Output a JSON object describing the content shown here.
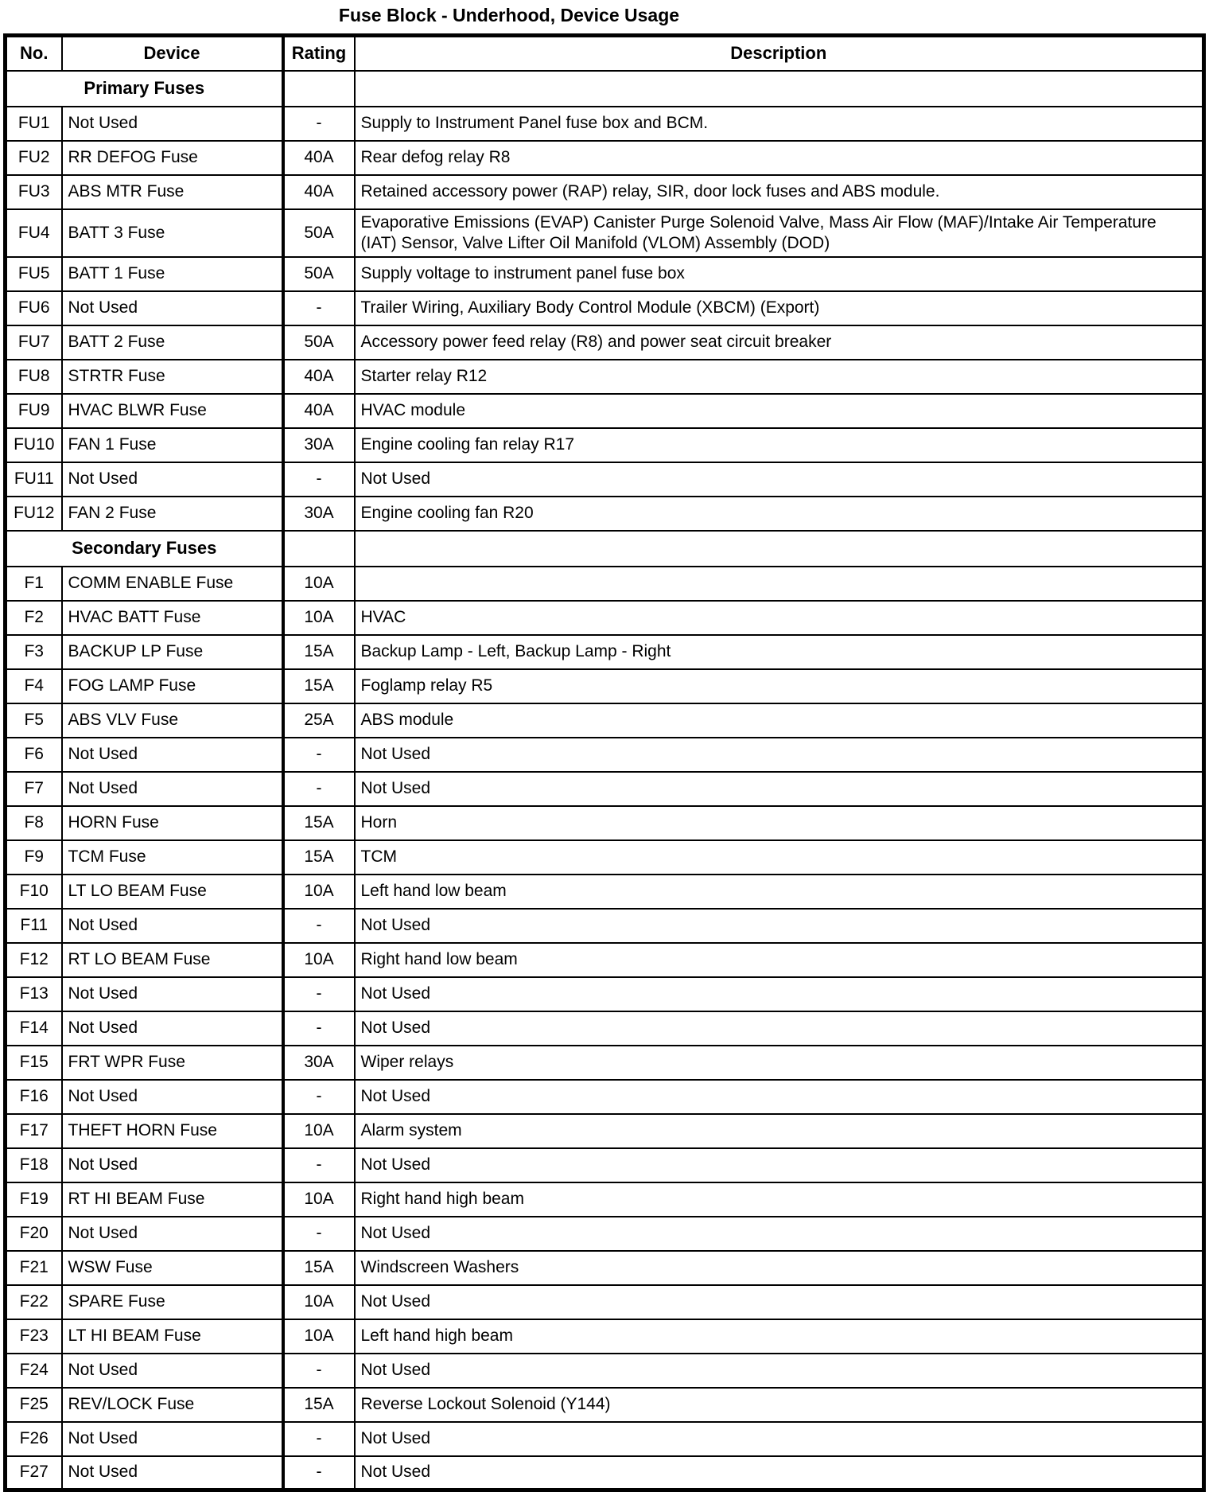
{
  "page_title": "Fuse Block - Underhood, Device Usage",
  "colors": {
    "background": "#ffffff",
    "text": "#000000",
    "border": "#000000"
  },
  "table": {
    "columns": [
      "No.",
      "Device",
      "Rating",
      "Description"
    ],
    "sections": [
      {
        "label": "Primary Fuses",
        "rows": [
          {
            "no": "FU1",
            "device": "Not Used",
            "rating": "-",
            "description": "Supply to Instrument Panel fuse box and BCM."
          },
          {
            "no": "FU2",
            "device": "RR DEFOG Fuse",
            "rating": "40A",
            "description": "Rear defog relay R8"
          },
          {
            "no": "FU3",
            "device": "ABS MTR Fuse",
            "rating": "40A",
            "description": "Retained accessory power (RAP) relay, SIR, door lock fuses and ABS module."
          },
          {
            "no": "FU4",
            "device": "BATT 3 Fuse",
            "rating": "50A",
            "description": "Evaporative Emissions (EVAP) Canister Purge Solenoid Valve, Mass Air Flow (MAF)/Intake Air Temperature (IAT) Sensor, Valve Lifter Oil Manifold (VLOM) Assembly (DOD)"
          },
          {
            "no": "FU5",
            "device": "BATT 1 Fuse",
            "rating": "50A",
            "description": "Supply voltage to instrument panel fuse box"
          },
          {
            "no": "FU6",
            "device": "Not Used",
            "rating": "-",
            "description": "Trailer Wiring, Auxiliary Body Control Module (XBCM) (Export)"
          },
          {
            "no": "FU7",
            "device": "BATT 2 Fuse",
            "rating": "50A",
            "description": "Accessory power feed relay (R8) and power seat circuit breaker"
          },
          {
            "no": "FU8",
            "device": "STRTR Fuse",
            "rating": "40A",
            "description": "Starter relay R12"
          },
          {
            "no": "FU9",
            "device": "HVAC BLWR Fuse",
            "rating": "40A",
            "description": "HVAC module"
          },
          {
            "no": "FU10",
            "device": "FAN 1 Fuse",
            "rating": "30A",
            "description": "Engine cooling fan relay R17"
          },
          {
            "no": "FU11",
            "device": "Not Used",
            "rating": "-",
            "description": "Not Used"
          },
          {
            "no": "FU12",
            "device": "FAN 2 Fuse",
            "rating": "30A",
            "description": "Engine cooling fan R20"
          }
        ]
      },
      {
        "label": "Secondary Fuses",
        "rows": [
          {
            "no": "F1",
            "device": "COMM ENABLE Fuse",
            "rating": "10A",
            "description": ""
          },
          {
            "no": "F2",
            "device": "HVAC BATT Fuse",
            "rating": "10A",
            "description": "HVAC"
          },
          {
            "no": "F3",
            "device": "BACKUP LP Fuse",
            "rating": "15A",
            "description": "Backup Lamp - Left, Backup Lamp - Right"
          },
          {
            "no": "F4",
            "device": "FOG LAMP Fuse",
            "rating": "15A",
            "description": "Foglamp relay R5"
          },
          {
            "no": "F5",
            "device": "ABS VLV Fuse",
            "rating": "25A",
            "description": "ABS module"
          },
          {
            "no": "F6",
            "device": "Not Used",
            "rating": "-",
            "description": "Not Used"
          },
          {
            "no": "F7",
            "device": "Not Used",
            "rating": "-",
            "description": "Not Used"
          },
          {
            "no": "F8",
            "device": "HORN Fuse",
            "rating": "15A",
            "description": "Horn"
          },
          {
            "no": "F9",
            "device": "TCM Fuse",
            "rating": "15A",
            "description": "TCM"
          },
          {
            "no": "F10",
            "device": "LT LO BEAM Fuse",
            "rating": "10A",
            "description": "Left hand low beam"
          },
          {
            "no": "F11",
            "device": "Not Used",
            "rating": "-",
            "description": "Not Used"
          },
          {
            "no": "F12",
            "device": "RT LO BEAM Fuse",
            "rating": "10A",
            "description": "Right hand low beam"
          },
          {
            "no": "F13",
            "device": "Not Used",
            "rating": "-",
            "description": "Not Used"
          },
          {
            "no": "F14",
            "device": "Not Used",
            "rating": "-",
            "description": "Not Used"
          },
          {
            "no": "F15",
            "device": "FRT WPR Fuse",
            "rating": "30A",
            "description": "Wiper relays"
          },
          {
            "no": "F16",
            "device": "Not Used",
            "rating": "-",
            "description": "Not Used"
          },
          {
            "no": "F17",
            "device": "THEFT HORN Fuse",
            "rating": "10A",
            "description": "Alarm system"
          },
          {
            "no": "F18",
            "device": "Not Used",
            "rating": "-",
            "description": "Not Used"
          },
          {
            "no": "F19",
            "device": "RT HI BEAM Fuse",
            "rating": "10A",
            "description": "Right hand high beam"
          },
          {
            "no": "F20",
            "device": "Not Used",
            "rating": "-",
            "description": "Not Used"
          },
          {
            "no": "F21",
            "device": "WSW Fuse",
            "rating": "15A",
            "description": "Windscreen Washers"
          },
          {
            "no": "F22",
            "device": "SPARE Fuse",
            "rating": "10A",
            "description": "Not Used"
          },
          {
            "no": "F23",
            "device": "LT HI BEAM Fuse",
            "rating": "10A",
            "description": "Left hand high beam"
          },
          {
            "no": "F24",
            "device": "Not Used",
            "rating": "-",
            "description": "Not Used"
          },
          {
            "no": "F25",
            "device": "REV/LOCK Fuse",
            "rating": "15A",
            "description": "Reverse Lockout Solenoid (Y144)"
          },
          {
            "no": "F26",
            "device": "Not Used",
            "rating": "-",
            "description": "Not Used"
          },
          {
            "no": "F27",
            "device": "Not Used",
            "rating": "-",
            "description": "Not Used"
          }
        ]
      }
    ]
  }
}
